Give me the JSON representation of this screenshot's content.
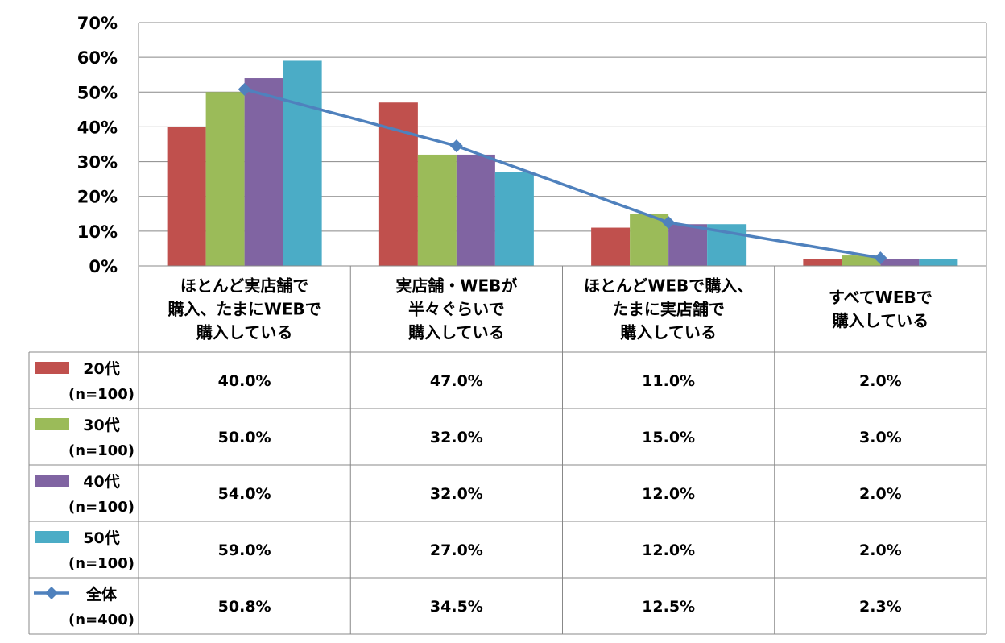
{
  "chart_data": {
    "type": "bar",
    "title": "",
    "xlabel": "",
    "ylabel": "",
    "ylim": [
      0,
      70
    ],
    "grid": true,
    "y_ticks": [
      "0%",
      "10%",
      "20%",
      "30%",
      "40%",
      "50%",
      "60%",
      "70%"
    ],
    "categories": [
      [
        "ほとんど実店舗で",
        "購入、たまにWEBで",
        "購入している"
      ],
      [
        "実店舗・WEBが",
        "半々ぐらいで",
        "購入している"
      ],
      [
        "ほとんどWEBで購入、",
        "たまに実店舗で",
        "購入している"
      ],
      [
        "すべてWEBで",
        "購入している"
      ]
    ],
    "series": [
      {
        "name": "20代",
        "n": "(n=100)",
        "kind": "bar",
        "color": "#C0504D",
        "values": [
          40.0,
          47.0,
          11.0,
          2.0
        ],
        "labels": [
          "40.0%",
          "47.0%",
          "11.0%",
          "2.0%"
        ]
      },
      {
        "name": "30代",
        "n": "(n=100)",
        "kind": "bar",
        "color": "#9BBB59",
        "values": [
          50.0,
          32.0,
          15.0,
          3.0
        ],
        "labels": [
          "50.0%",
          "32.0%",
          "15.0%",
          "3.0%"
        ]
      },
      {
        "name": "40代",
        "n": "(n=100)",
        "kind": "bar",
        "color": "#8064A2",
        "values": [
          54.0,
          32.0,
          12.0,
          2.0
        ],
        "labels": [
          "54.0%",
          "32.0%",
          "12.0%",
          "2.0%"
        ]
      },
      {
        "name": "50代",
        "n": "(n=100)",
        "kind": "bar",
        "color": "#4BACC6",
        "values": [
          59.0,
          27.0,
          12.0,
          2.0
        ],
        "labels": [
          "59.0%",
          "27.0%",
          "12.0%",
          "2.0%"
        ]
      },
      {
        "name": "全体",
        "n": "(n=400)",
        "kind": "line",
        "color": "#4F81BD",
        "values": [
          50.8,
          34.5,
          12.5,
          2.3
        ],
        "labels": [
          "50.8%",
          "34.5%",
          "12.5%",
          "2.3%"
        ]
      }
    ]
  }
}
